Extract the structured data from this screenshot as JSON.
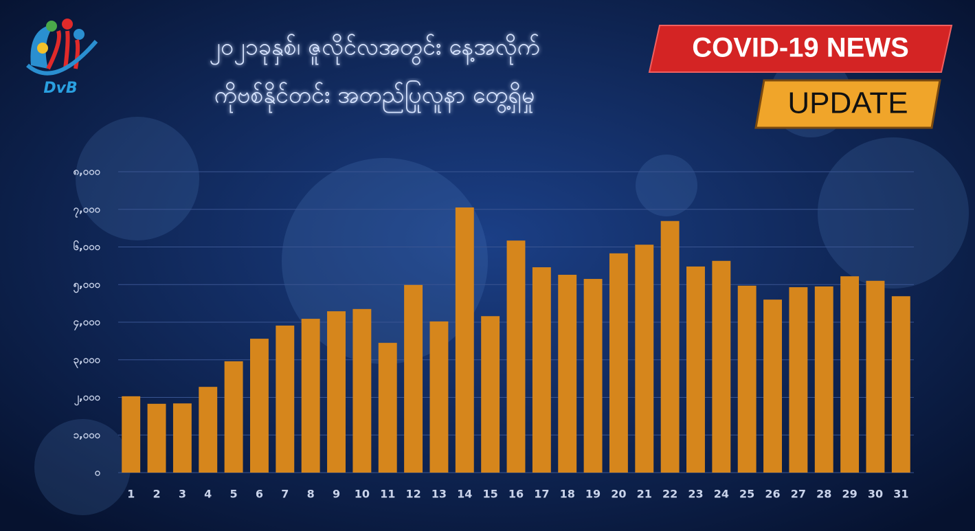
{
  "header": {
    "logo": "DvB",
    "badge_top": "COVID-19 NEWS",
    "badge_bottom": "UPDATE"
  },
  "chart_data": {
    "type": "bar",
    "title": "၂၀၂၁ခုနှစ်၊ ဇူလိုင်လအတွင်း နေ့အလိုက်",
    "subtitle": "ကိုဗစ်နိုင်တင်း အတည်ပြုလူနာ တွေ့ရှိမှု",
    "categories": [
      "1",
      "2",
      "3",
      "4",
      "5",
      "6",
      "7",
      "8",
      "9",
      "10",
      "11",
      "12",
      "13",
      "14",
      "15",
      "16",
      "17",
      "18",
      "19",
      "20",
      "21",
      "22",
      "23",
      "24",
      "25",
      "26",
      "27",
      "28",
      "29",
      "30",
      "31"
    ],
    "values": [
      2030,
      1830,
      1840,
      2280,
      2960,
      3560,
      3910,
      4090,
      4290,
      4350,
      3450,
      4990,
      4020,
      7050,
      4160,
      6170,
      5460,
      5260,
      5150,
      5830,
      6060,
      6690,
      5480,
      5630,
      4970,
      4600,
      4930,
      4950,
      5220,
      5100,
      4690
    ],
    "color": "#d6861c",
    "ylim": [
      0,
      8000
    ],
    "yticks": [
      {
        "value": 0,
        "label": "၀"
      },
      {
        "value": 1000,
        "label": "၁,၀၀၀"
      },
      {
        "value": 2000,
        "label": "၂,၀၀၀"
      },
      {
        "value": 3000,
        "label": "၃,၀၀၀"
      },
      {
        "value": 4000,
        "label": "၄,၀၀၀"
      },
      {
        "value": 5000,
        "label": "၅,၀၀၀"
      },
      {
        "value": 6000,
        "label": "၆,၀၀၀"
      },
      {
        "value": 7000,
        "label": "၇,၀၀၀"
      },
      {
        "value": 8000,
        "label": "၈,၀၀၀"
      }
    ],
    "grid": true
  }
}
